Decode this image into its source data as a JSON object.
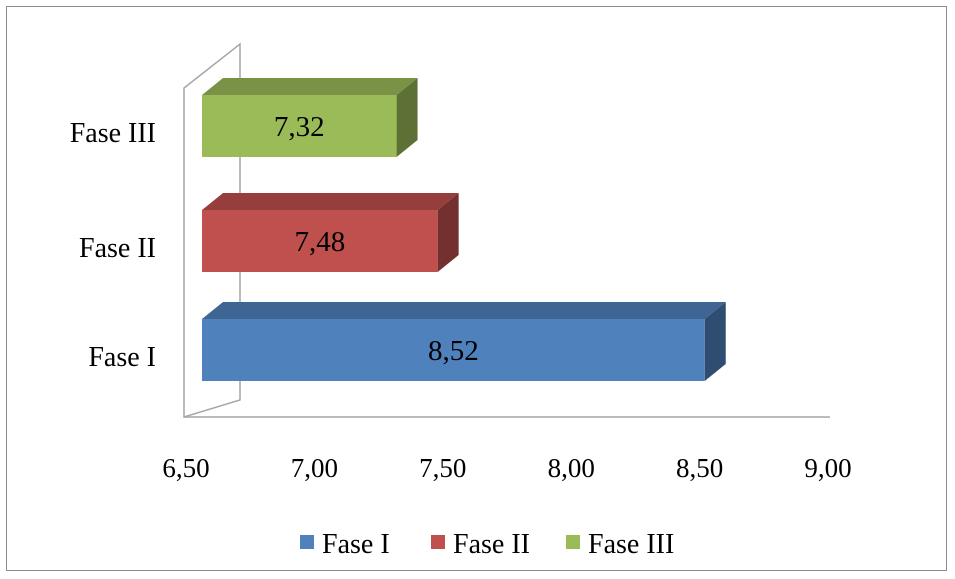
{
  "chart_data": {
    "type": "bar",
    "orientation": "horizontal",
    "three_d": true,
    "categories": [
      "Fase I",
      "Fase II",
      "Fase III"
    ],
    "values": [
      8.52,
      7.48,
      7.32
    ],
    "data_labels": [
      "8,52",
      "7,48",
      "7,32"
    ],
    "colors": [
      "#4F81BD",
      "#C0504D",
      "#9BBB59"
    ],
    "xlim": [
      6.5,
      9.0
    ],
    "x_ticks": [
      6.5,
      7.0,
      7.5,
      8.0,
      8.5,
      9.0
    ],
    "x_tick_labels": [
      "6,50",
      "7,00",
      "7,50",
      "8,00",
      "8,50",
      "9,00"
    ],
    "grid": false,
    "legend": {
      "position": "bottom",
      "entries": [
        "Fase I",
        "Fase II",
        "Fase III"
      ]
    }
  }
}
